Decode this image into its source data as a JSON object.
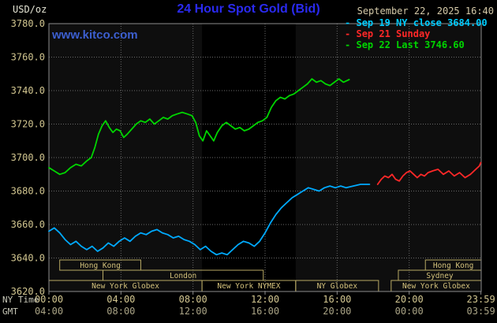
{
  "colors": {
    "page_bg": "#000000",
    "plot_bg": "#0e0e0e",
    "band": "#000000",
    "grid": "#6a6a6a",
    "border": "#8c8c8c",
    "title": "#2a2af0",
    "watermark": "#3c5fd0",
    "unit": "#e4e4d4",
    "date": "#d4c9a8",
    "tan": "#d2c690",
    "gmt_tan": "#aaa486",
    "corner": "#c8c8b8",
    "session_border": "#b8a964",
    "session_text": "#d4c27c",
    "cyan": "#00aaff",
    "red": "#ff2828",
    "green": "#00d500"
  },
  "header": {
    "unit_label": "USD/oz",
    "title": "24 Hour Spot Gold (Bid)",
    "datetime": "September 22, 2025 16:40",
    "watermark": "www.kitco.com",
    "legend": [
      {
        "marker": "-",
        "label": "Sep 19 NY close 3684.00",
        "color": "#00ccff"
      },
      {
        "marker": "-",
        "label": "Sep 21 Sunday",
        "color": "#ff2828"
      },
      {
        "marker": "-",
        "label": "Sep 22 Last 3746.60",
        "color": "#00d500"
      }
    ]
  },
  "axes": {
    "ny_time_label": "NY Time",
    "gmt_label": "GMT",
    "ny_ticks": [
      "00:00",
      "04:00",
      "08:00",
      "12:00",
      "16:00",
      "20:00",
      "23:59"
    ],
    "gmt_ticks": [
      "04:00",
      "08:00",
      "12:00",
      "16:00",
      "20:00",
      "00:00",
      "03:59"
    ],
    "y_ticks": [
      "3780.0",
      "3760.0",
      "3740.0",
      "3720.0",
      "3700.0",
      "3680.0",
      "3660.0",
      "3640.0",
      "3620.0"
    ]
  },
  "chart_data": {
    "type": "line",
    "title": "24 Hour Spot Gold (Bid)",
    "xlabel": "NY Time",
    "ylabel": "USD/oz",
    "xlim": [
      0,
      24
    ],
    "ylim": [
      3620,
      3780
    ],
    "grid": true,
    "x_grid_hours": [
      4,
      8,
      12,
      16,
      20
    ],
    "x_tick_hours": [
      0,
      4,
      8,
      12,
      16,
      20,
      23.983
    ],
    "bands": [
      [
        8.5,
        13.7
      ]
    ],
    "sessions": [
      {
        "row": 0,
        "label": "Hong Kong",
        "start": 0.6,
        "end": 5.1
      },
      {
        "row": 0,
        "label": "Hong Kong",
        "start": 20.9,
        "end": 24
      },
      {
        "row": 1,
        "label": "London",
        "start": 3.0,
        "end": 11.9
      },
      {
        "row": 1,
        "label": "Sydney",
        "start": 19.4,
        "end": 24
      },
      {
        "row": 2,
        "label": "New York Globex",
        "start": 0,
        "end": 8.5
      },
      {
        "row": 2,
        "label": "New York NYMEX",
        "start": 8.5,
        "end": 13.7
      },
      {
        "row": 2,
        "label": "NY Globex",
        "start": 13.7,
        "end": 18.3
      },
      {
        "row": 2,
        "label": "New York Globex",
        "start": 19.0,
        "end": 24
      }
    ],
    "series": [
      {
        "id": "sep19-ny-close",
        "name": "Sep 19 NY close",
        "close": 3684.0,
        "color": "#00aaff",
        "points": [
          [
            0,
            3656
          ],
          [
            0.3,
            3658
          ],
          [
            0.6,
            3655
          ],
          [
            0.9,
            3651
          ],
          [
            1.2,
            3648
          ],
          [
            1.5,
            3650
          ],
          [
            1.8,
            3647
          ],
          [
            2.1,
            3645
          ],
          [
            2.4,
            3647
          ],
          [
            2.7,
            3644
          ],
          [
            3.0,
            3646
          ],
          [
            3.3,
            3649
          ],
          [
            3.6,
            3647
          ],
          [
            3.9,
            3650
          ],
          [
            4.2,
            3652
          ],
          [
            4.5,
            3650
          ],
          [
            4.8,
            3653
          ],
          [
            5.1,
            3655
          ],
          [
            5.4,
            3654
          ],
          [
            5.7,
            3656
          ],
          [
            6.0,
            3657
          ],
          [
            6.3,
            3655
          ],
          [
            6.6,
            3654
          ],
          [
            6.9,
            3652
          ],
          [
            7.2,
            3653
          ],
          [
            7.5,
            3651
          ],
          [
            7.8,
            3650
          ],
          [
            8.1,
            3648
          ],
          [
            8.4,
            3645
          ],
          [
            8.7,
            3647
          ],
          [
            9.0,
            3644
          ],
          [
            9.3,
            3642
          ],
          [
            9.6,
            3643
          ],
          [
            9.9,
            3642
          ],
          [
            10.2,
            3645
          ],
          [
            10.5,
            3648
          ],
          [
            10.8,
            3650
          ],
          [
            11.1,
            3649
          ],
          [
            11.4,
            3647
          ],
          [
            11.7,
            3650
          ],
          [
            12.0,
            3655
          ],
          [
            12.3,
            3661
          ],
          [
            12.6,
            3666
          ],
          [
            12.9,
            3670
          ],
          [
            13.2,
            3673
          ],
          [
            13.5,
            3676
          ],
          [
            13.8,
            3678
          ],
          [
            14.1,
            3680
          ],
          [
            14.4,
            3682
          ],
          [
            14.7,
            3681
          ],
          [
            15.0,
            3680
          ],
          [
            15.3,
            3682
          ],
          [
            15.6,
            3683
          ],
          [
            15.9,
            3682
          ],
          [
            16.2,
            3683
          ],
          [
            16.5,
            3682
          ],
          [
            16.9,
            3683
          ],
          [
            17.3,
            3684
          ],
          [
            17.8,
            3684
          ]
        ]
      },
      {
        "id": "sep21-sunday",
        "name": "Sep 21 Sunday",
        "color": "#ff2828",
        "points": [
          [
            18.25,
            3684
          ],
          [
            18.45,
            3687
          ],
          [
            18.65,
            3689
          ],
          [
            18.85,
            3688
          ],
          [
            19.05,
            3690
          ],
          [
            19.25,
            3687
          ],
          [
            19.45,
            3686
          ],
          [
            19.65,
            3689
          ],
          [
            19.85,
            3691
          ],
          [
            20.05,
            3692
          ],
          [
            20.25,
            3690
          ],
          [
            20.45,
            3688
          ],
          [
            20.65,
            3690
          ],
          [
            20.85,
            3689
          ],
          [
            21.05,
            3691
          ],
          [
            21.3,
            3692
          ],
          [
            21.6,
            3693
          ],
          [
            21.9,
            3690
          ],
          [
            22.2,
            3692
          ],
          [
            22.5,
            3689
          ],
          [
            22.8,
            3691
          ],
          [
            23.1,
            3688
          ],
          [
            23.4,
            3690
          ],
          [
            23.7,
            3693
          ],
          [
            23.9,
            3695
          ],
          [
            23.98,
            3697
          ]
        ]
      },
      {
        "id": "sep22-last",
        "name": "Sep 22 Last",
        "last": 3746.6,
        "color": "#00d500",
        "points": [
          [
            0,
            3694
          ],
          [
            0.3,
            3692
          ],
          [
            0.6,
            3690
          ],
          [
            0.9,
            3691
          ],
          [
            1.2,
            3694
          ],
          [
            1.5,
            3696
          ],
          [
            1.8,
            3695
          ],
          [
            2.1,
            3698
          ],
          [
            2.35,
            3700
          ],
          [
            2.55,
            3706
          ],
          [
            2.75,
            3714
          ],
          [
            2.95,
            3719
          ],
          [
            3.15,
            3722
          ],
          [
            3.35,
            3718
          ],
          [
            3.55,
            3715
          ],
          [
            3.75,
            3717
          ],
          [
            3.95,
            3716
          ],
          [
            4.15,
            3712
          ],
          [
            4.35,
            3714
          ],
          [
            4.6,
            3717
          ],
          [
            4.85,
            3720
          ],
          [
            5.1,
            3722
          ],
          [
            5.35,
            3721
          ],
          [
            5.6,
            3723
          ],
          [
            5.85,
            3720
          ],
          [
            6.1,
            3722
          ],
          [
            6.35,
            3724
          ],
          [
            6.6,
            3723
          ],
          [
            6.85,
            3725
          ],
          [
            7.1,
            3726
          ],
          [
            7.4,
            3727
          ],
          [
            7.7,
            3726
          ],
          [
            7.95,
            3725
          ],
          [
            8.15,
            3721
          ],
          [
            8.35,
            3713
          ],
          [
            8.55,
            3710
          ],
          [
            8.75,
            3716
          ],
          [
            8.95,
            3713
          ],
          [
            9.15,
            3710
          ],
          [
            9.35,
            3715
          ],
          [
            9.6,
            3719
          ],
          [
            9.85,
            3721
          ],
          [
            10.1,
            3719
          ],
          [
            10.35,
            3717
          ],
          [
            10.6,
            3718
          ],
          [
            10.85,
            3716
          ],
          [
            11.1,
            3717
          ],
          [
            11.35,
            3719
          ],
          [
            11.6,
            3721
          ],
          [
            11.85,
            3722
          ],
          [
            12.1,
            3724
          ],
          [
            12.35,
            3730
          ],
          [
            12.6,
            3734
          ],
          [
            12.85,
            3736
          ],
          [
            13.1,
            3735
          ],
          [
            13.35,
            3737
          ],
          [
            13.6,
            3738
          ],
          [
            13.85,
            3740
          ],
          [
            14.1,
            3742
          ],
          [
            14.35,
            3744
          ],
          [
            14.6,
            3747
          ],
          [
            14.85,
            3745
          ],
          [
            15.1,
            3746
          ],
          [
            15.35,
            3744
          ],
          [
            15.6,
            3743
          ],
          [
            15.85,
            3745
          ],
          [
            16.1,
            3747
          ],
          [
            16.35,
            3745
          ],
          [
            16.67,
            3746.6
          ]
        ]
      }
    ]
  }
}
